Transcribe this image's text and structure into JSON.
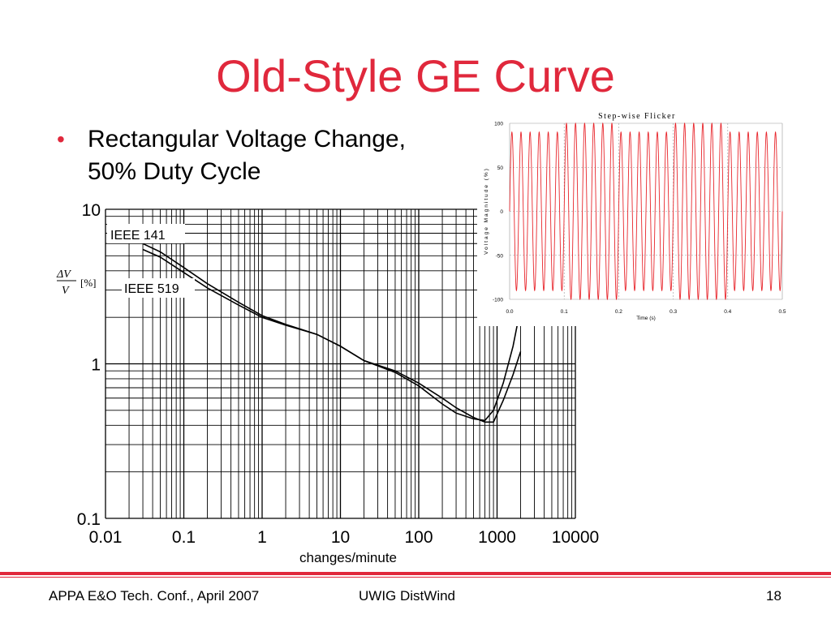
{
  "slide": {
    "title": "Old-Style GE Curve",
    "bullet": "Rectangular Voltage Change, 50% Duty Cycle",
    "bullet_line1": "Rectangular Voltage Change,",
    "bullet_line2": "50% Duty Cycle"
  },
  "footer": {
    "left": "APPA E&O Tech. Conf., April 2007",
    "center": "UWIG DistWind",
    "page": "18"
  },
  "colors": {
    "accent": "#e0283c",
    "signal": "#e8262c",
    "ink": "#000000"
  },
  "chart_data": [
    {
      "type": "line",
      "title": "",
      "xlabel": "changes/minute",
      "ylabel": "ΔV/V [%]",
      "ylabel_num": "ΔV",
      "ylabel_den": "V",
      "ylabel_unit": "[%]",
      "xscale": "log",
      "yscale": "log",
      "xlim": [
        0.01,
        10000
      ],
      "ylim": [
        0.1,
        10
      ],
      "x_ticks": [
        "0.01",
        "0.1",
        "1",
        "10",
        "100",
        "1000",
        "10000"
      ],
      "y_ticks": [
        "10",
        "1",
        "0.1"
      ],
      "grid": true,
      "series": [
        {
          "name": "IEEE 141",
          "x": [
            0.03,
            0.05,
            0.1,
            0.2,
            0.5,
            1,
            2,
            5,
            10,
            20,
            50,
            100,
            200,
            300,
            500,
            700,
            900,
            1200,
            1600,
            2000
          ],
          "y": [
            6.0,
            5.3,
            4.2,
            3.3,
            2.5,
            2.05,
            1.8,
            1.55,
            1.3,
            1.05,
            0.9,
            0.75,
            0.6,
            0.52,
            0.45,
            0.42,
            0.42,
            0.58,
            0.85,
            1.2
          ]
        },
        {
          "name": "IEEE 519",
          "x": [
            0.03,
            0.05,
            0.1,
            0.2,
            0.5,
            1,
            2,
            5,
            10,
            20,
            50,
            100,
            200,
            300,
            500,
            700,
            900,
            1200,
            1600,
            2000
          ],
          "y": [
            5.5,
            4.9,
            3.9,
            3.1,
            2.4,
            2.0,
            1.78,
            1.55,
            1.3,
            1.05,
            0.88,
            0.72,
            0.55,
            0.48,
            0.44,
            0.43,
            0.5,
            0.75,
            1.3,
            2.3
          ]
        }
      ]
    },
    {
      "type": "line",
      "title": "Step-wise Flicker",
      "xlabel": "Time (s)",
      "ylabel": "Voltage Magnitude (%)",
      "xlim": [
        0.0,
        0.5
      ],
      "ylim": [
        -100,
        100
      ],
      "x_ticks": [
        "0.0",
        "0.1",
        "0.2",
        "0.3",
        "0.4",
        "0.5"
      ],
      "y_ticks": [
        "100",
        "50",
        "0",
        "-50",
        "-100"
      ],
      "grid": true,
      "series": [
        {
          "waveform": "sine",
          "frequency_hz": 60,
          "amplitude_levels": [
            90,
            100
          ],
          "envelope_step_period_s": 0.1
        }
      ]
    }
  ]
}
